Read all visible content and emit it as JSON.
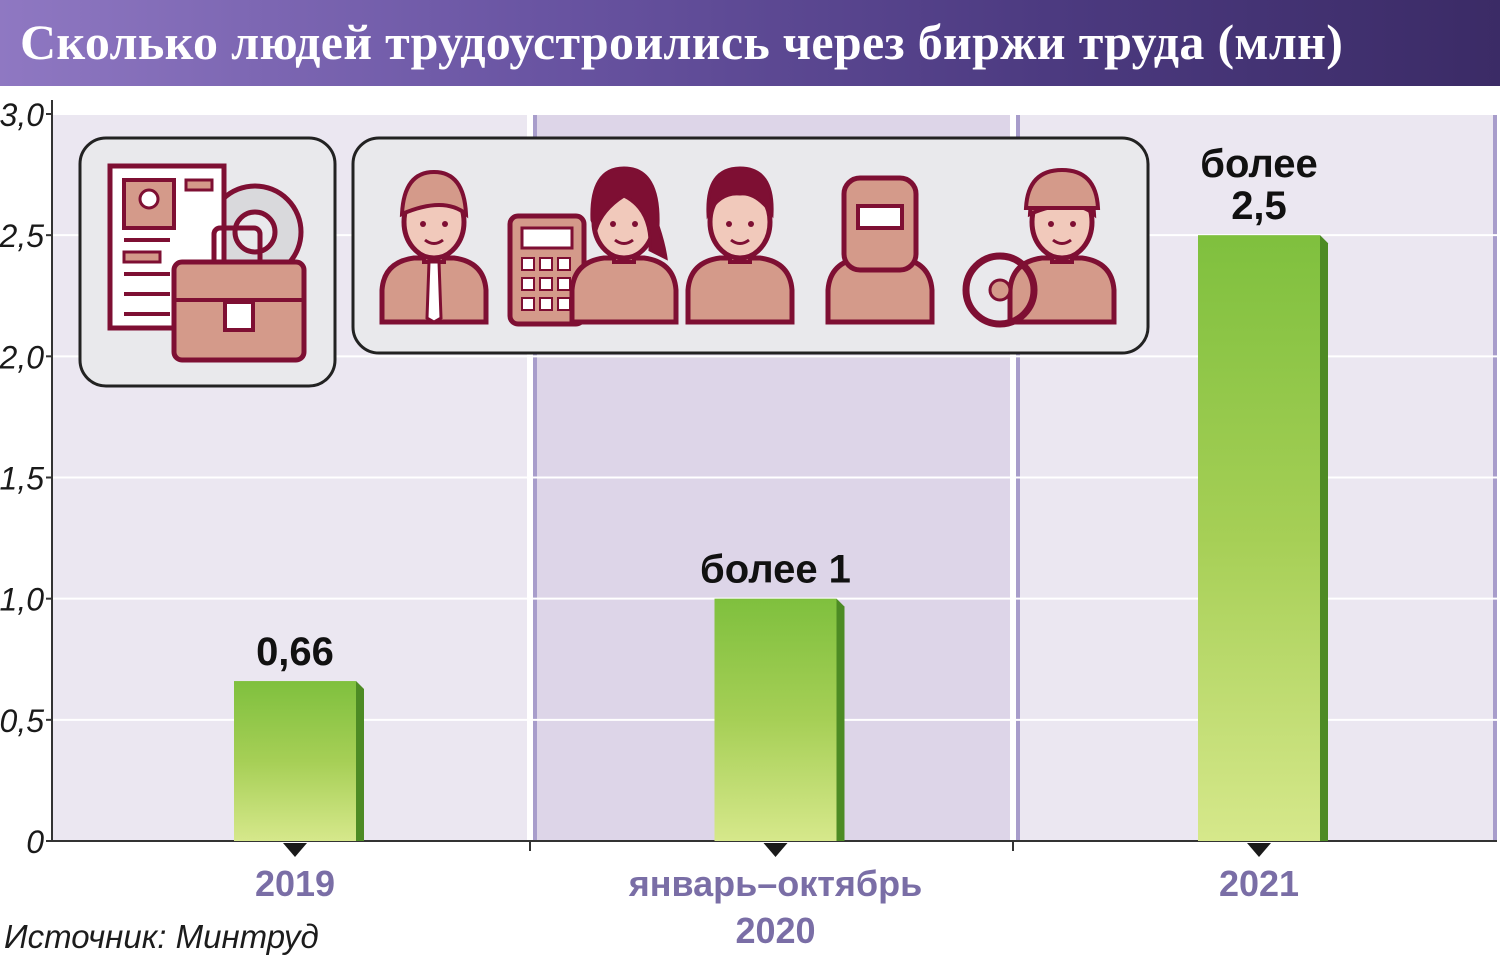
{
  "title": "Сколько людей трудоустроились через биржи труда (млн)",
  "source": "Источник: Минтруд",
  "colors": {
    "header_start": "#8f78c2",
    "header_end": "#3b2b66",
    "panel_light": "#ebe7f1",
    "panel_dark": "#ddd5e8",
    "divider": "#ffffff",
    "divider_accent": "#a89dcb",
    "bar_top": "#7fc03e",
    "bar_bottom": "#d5e789",
    "bar_side": "#4d8b24",
    "category_label": "#7a6ea6",
    "icon_fill": "#d49a8a",
    "icon_stroke": "#7e0f33"
  },
  "chart_data": {
    "type": "bar",
    "categories": [
      "2019",
      "январь–октябрь|2020",
      "2021"
    ],
    "values": [
      0.66,
      1.0,
      2.5
    ],
    "data_labels": [
      "0,66",
      "более 1",
      "более|2,5"
    ],
    "ylim": [
      0,
      3.0
    ],
    "yticks": [
      0,
      0.5,
      1.0,
      1.5,
      2.0,
      2.5,
      3.0
    ],
    "ytick_labels": [
      "0",
      "0,5",
      "1,0",
      "1,5",
      "2,0",
      "2,5",
      "3,0"
    ],
    "xlabel": "",
    "ylabel": "",
    "grid": true
  },
  "icons": {
    "group_left": [
      "resume-icon",
      "gear-icon",
      "briefcase-icon"
    ],
    "group_right": [
      "businessman-icon",
      "calculator-icon",
      "accountant-woman-icon",
      "doctor-icon",
      "welder-icon",
      "driver-icon"
    ]
  }
}
